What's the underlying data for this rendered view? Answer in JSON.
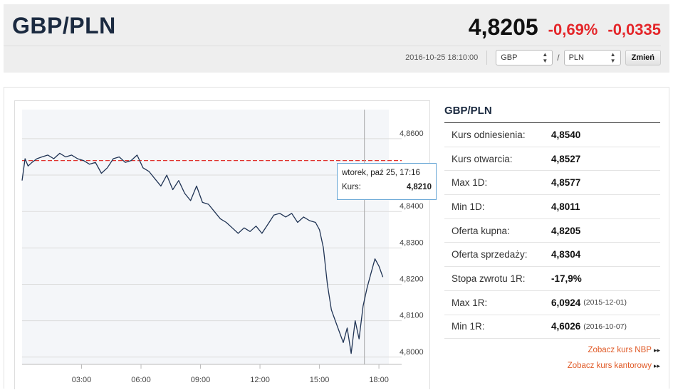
{
  "header": {
    "pair": "GBP/PLN",
    "price": "4,8205",
    "change_pct": "-0,69%",
    "change_abs": "-0,0335",
    "timestamp": "2016-10-25 18:10:00",
    "base_currency": "GBP",
    "quote_currency": "PLN",
    "separator": "/",
    "change_button": "Zmień",
    "colors": {
      "negative": "#e4262a",
      "title": "#1b2a40"
    }
  },
  "tooltip": {
    "date": "wtorek, paź 25, 17:16",
    "label": "Kurs:",
    "value": "4,8210"
  },
  "chart_data": {
    "type": "line",
    "title": "",
    "xlabel": "",
    "ylabel": "",
    "x_ticks": [
      "03:00",
      "06:00",
      "09:00",
      "12:00",
      "15:00",
      "18:00"
    ],
    "y_ticks": [
      "4,8000",
      "4,8100",
      "4,8200",
      "4,8300",
      "4,8400",
      "4,8500",
      "4,8600"
    ],
    "ylim": [
      4.798,
      4.868
    ],
    "xlim_hours": [
      0.0,
      18.5
    ],
    "reference_line": {
      "value": 4.854,
      "label": "Kurs odniesienia",
      "color": "#e0332e"
    },
    "crosshair_time": "17:16",
    "grid": true,
    "series": [
      {
        "color": "#1f3354",
        "x_hours": [
          0.0,
          0.15,
          0.3,
          0.5,
          0.75,
          1.0,
          1.3,
          1.6,
          1.9,
          2.2,
          2.5,
          2.8,
          3.1,
          3.4,
          3.7,
          4.0,
          4.3,
          4.6,
          4.9,
          5.2,
          5.5,
          5.8,
          6.1,
          6.4,
          6.7,
          7.0,
          7.3,
          7.6,
          7.9,
          8.2,
          8.5,
          8.8,
          9.1,
          9.4,
          9.7,
          10.0,
          10.3,
          10.6,
          10.9,
          11.2,
          11.5,
          11.8,
          12.1,
          12.4,
          12.7,
          13.0,
          13.3,
          13.6,
          13.9,
          14.2,
          14.5,
          14.8,
          15.0,
          15.2,
          15.4,
          15.6,
          15.8,
          16.0,
          16.2,
          16.4,
          16.6,
          16.8,
          17.0,
          17.2,
          17.4,
          17.6,
          17.8,
          18.0,
          18.2
        ],
        "values": [
          4.8485,
          4.8545,
          4.8525,
          4.8535,
          4.8545,
          4.855,
          4.8555,
          4.8545,
          4.856,
          4.855,
          4.8555,
          4.8545,
          4.854,
          4.853,
          4.8535,
          4.8505,
          4.852,
          4.8545,
          4.855,
          4.8535,
          4.854,
          4.8555,
          4.852,
          4.851,
          4.849,
          4.847,
          4.85,
          4.846,
          4.8485,
          4.845,
          4.843,
          4.847,
          4.8425,
          4.842,
          4.84,
          4.838,
          4.837,
          4.8355,
          4.834,
          4.8355,
          4.8345,
          4.836,
          4.834,
          4.8365,
          4.839,
          4.8395,
          4.8385,
          4.8395,
          4.837,
          4.8385,
          4.8375,
          4.837,
          4.835,
          4.83,
          4.82,
          4.813,
          4.81,
          4.807,
          4.804,
          4.808,
          4.801,
          4.81,
          4.805,
          4.814,
          4.819,
          4.823,
          4.827,
          4.825,
          4.822
        ]
      }
    ]
  },
  "summary": {
    "title": "GBP/PLN",
    "rows": [
      {
        "label": "Kurs odniesienia:",
        "value": "4,8540",
        "date": ""
      },
      {
        "label": "Kurs otwarcia:",
        "value": "4,8527",
        "date": ""
      },
      {
        "label": "Max 1D:",
        "value": "4,8577",
        "date": ""
      },
      {
        "label": "Min 1D:",
        "value": "4,8011",
        "date": ""
      },
      {
        "label": "Oferta kupna:",
        "value": "4,8205",
        "date": ""
      },
      {
        "label": "Oferta sprzedaży:",
        "value": "4,8304",
        "date": ""
      },
      {
        "label": "Stopa zwrotu 1R:",
        "value": "-17,9%",
        "date": ""
      },
      {
        "label": "Max 1R:",
        "value": "6,0924",
        "date": "(2015-12-01)"
      },
      {
        "label": "Min 1R:",
        "value": "4,6026",
        "date": "(2016-10-07)"
      }
    ],
    "link_nbp": "Zobacz kurs NBP",
    "link_kantor": "Zobacz kurs kantorowy",
    "link_arrow": "▸▸"
  }
}
